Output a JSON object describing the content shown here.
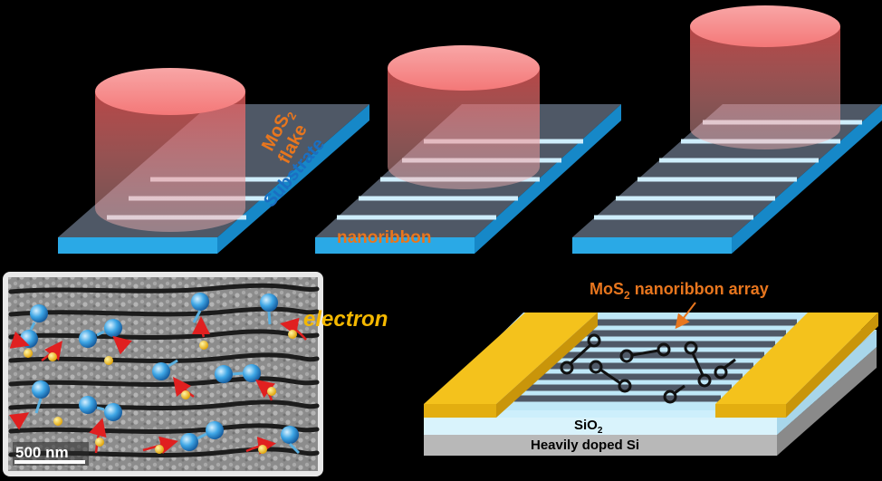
{
  "labels": {
    "mos2_flake_line1": "MoS",
    "mos2_flake_sub": "2",
    "mos2_flake_line2": "flake",
    "substrate": "Substrate",
    "nanoribbon": "nanoribbon",
    "electron": "electron",
    "scale_bar": "500 nm",
    "array_prefix": "MoS",
    "array_sub": "2",
    "array_suffix": " nanoribbon array",
    "sio2_prefix": "SiO",
    "sio2_sub": "2",
    "si_layer": "Heavily doped Si"
  },
  "colors": {
    "background": "#000000",
    "substrate_top": "#4f5866",
    "substrate_edge": "#2aa9e6",
    "stripe": "#cfeefc",
    "cylinder": "#f47a7a",
    "label_orange": "#e8761e",
    "electron_yellow": "#f5c518",
    "electrode_gold": "#f4c21c"
  }
}
